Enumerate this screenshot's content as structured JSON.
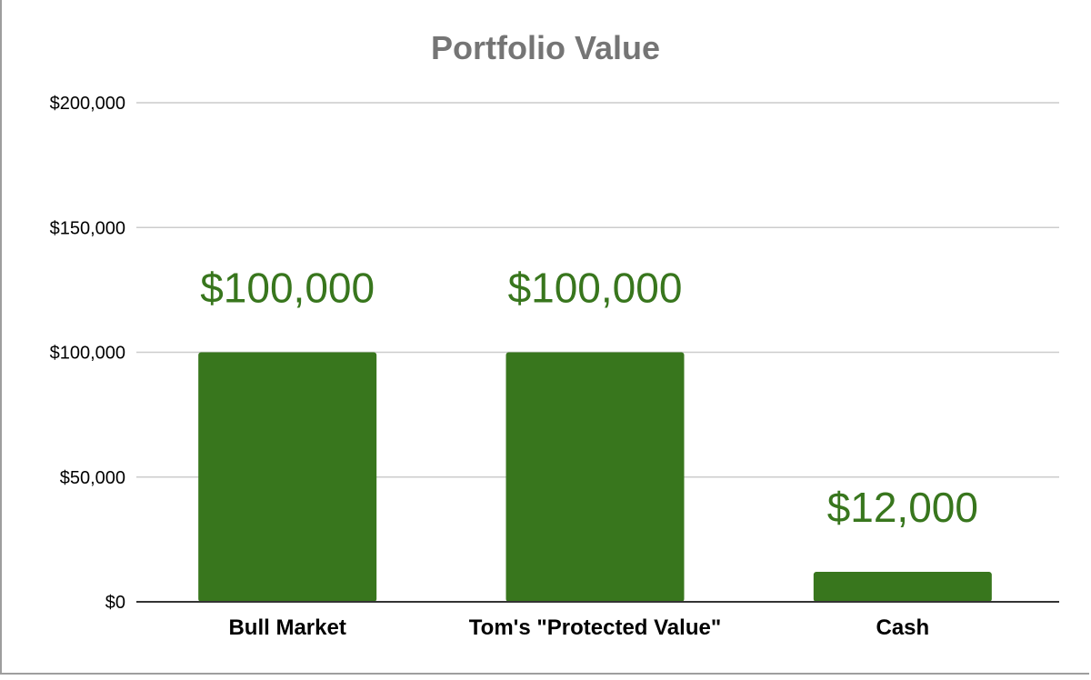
{
  "chart_data": {
    "type": "bar",
    "title": "Portfolio Value",
    "categories": [
      "Bull Market",
      "Tom's \"Protected Value\"",
      "Cash"
    ],
    "values": [
      100000,
      100000,
      12000
    ],
    "data_labels": [
      "$100,000",
      "$100,000",
      "$12,000"
    ],
    "y_ticks": [
      "$0",
      "$50,000",
      "$100,000",
      "$150,000",
      "$200,000"
    ],
    "ylim": [
      0,
      200000
    ],
    "xlabel": "",
    "ylabel": "",
    "grid": true,
    "legend": "none",
    "colors": {
      "bar": "#38761d",
      "data_label": "#38761d",
      "grid": "#cccccc",
      "axis": "#333333",
      "title": "#757575"
    }
  }
}
